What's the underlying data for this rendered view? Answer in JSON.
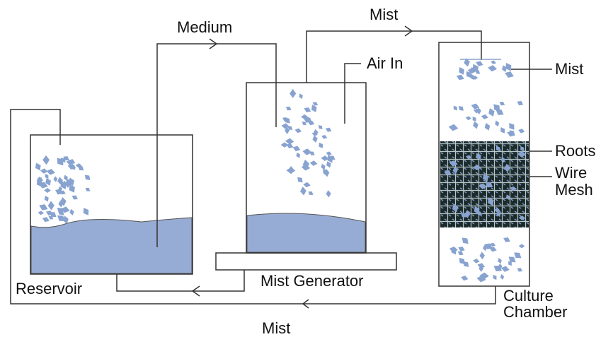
{
  "labels": {
    "medium": "Medium",
    "mist_top": "Mist",
    "air_in": "Air In",
    "mist_chamber": "Mist",
    "roots": "Roots",
    "wire_mesh": [
      "Wire",
      "Mesh"
    ],
    "reservoir": "Reservoir",
    "mist_generator": "Mist Generator",
    "culture_chamber": [
      "Culture",
      "Chamber"
    ],
    "mist_bottom": "Mist"
  }
}
